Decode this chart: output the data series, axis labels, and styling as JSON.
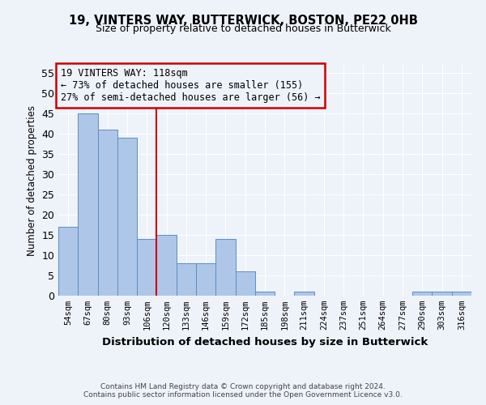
{
  "title1": "19, VINTERS WAY, BUTTERWICK, BOSTON, PE22 0HB",
  "title2": "Size of property relative to detached houses in Butterwick",
  "xlabel": "Distribution of detached houses by size in Butterwick",
  "ylabel": "Number of detached properties",
  "categories": [
    "54sqm",
    "67sqm",
    "80sqm",
    "93sqm",
    "106sqm",
    "120sqm",
    "133sqm",
    "146sqm",
    "159sqm",
    "172sqm",
    "185sqm",
    "198sqm",
    "211sqm",
    "224sqm",
    "237sqm",
    "251sqm",
    "264sqm",
    "277sqm",
    "290sqm",
    "303sqm",
    "316sqm"
  ],
  "values": [
    17,
    45,
    41,
    39,
    14,
    15,
    8,
    8,
    14,
    6,
    1,
    0,
    1,
    0,
    0,
    0,
    0,
    0,
    1,
    1,
    1
  ],
  "bar_color": "#aec6e8",
  "bar_edge_color": "#5a8fc2",
  "vline_x": 4.5,
  "annotation_text": "19 VINTERS WAY: 118sqm\n← 73% of detached houses are smaller (155)\n27% of semi-detached houses are larger (56) →",
  "annotation_box_color": "#cc0000",
  "ylim": [
    0,
    57
  ],
  "yticks": [
    0,
    5,
    10,
    15,
    20,
    25,
    30,
    35,
    40,
    45,
    50,
    55
  ],
  "footer1": "Contains HM Land Registry data © Crown copyright and database right 2024.",
  "footer2": "Contains public sector information licensed under the Open Government Licence v3.0.",
  "background_color": "#eef2f9",
  "grid_color": "#ffffff"
}
